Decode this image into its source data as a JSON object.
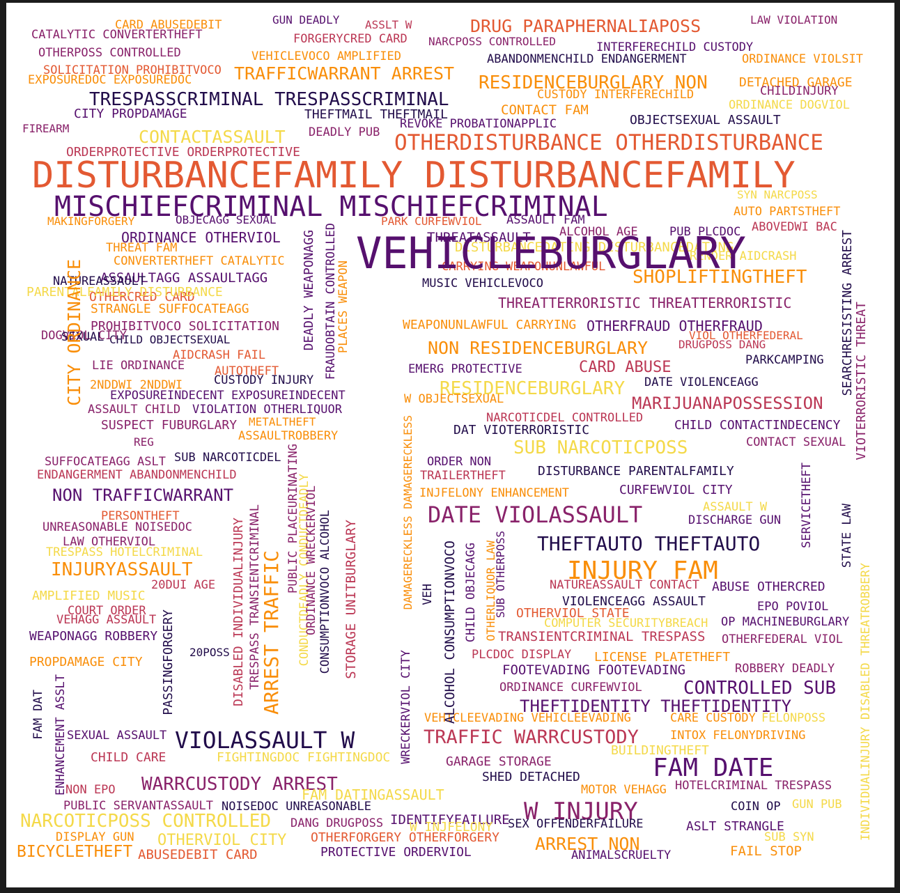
{
  "colors": {
    "c1": "#210c4a",
    "c2": "#56106e",
    "c3": "#89226a",
    "c4": "#bb3754",
    "c5": "#e35932",
    "c6": "#f98e09",
    "c7": "#f4d949"
  },
  "words": [
    {
      "text": "CARD ABUSEDEBIT",
      "c": "c6"
    },
    {
      "text": "GUN DEADLY",
      "c": "c2"
    },
    {
      "text": "ASSLT W",
      "c": "c4"
    },
    {
      "text": "DRUG PARAPHERNALIAPOSS",
      "c": "c5"
    },
    {
      "text": "LAW VIOLATION",
      "c": "c3"
    },
    {
      "text": "CATALYTIC CONVERTERTHEFT",
      "c": "c3"
    },
    {
      "text": "FORGERYCRED CARD",
      "c": "c4"
    },
    {
      "text": "NARCPOSS CONTROLLED",
      "c": "c3"
    },
    {
      "text": "INTERFERECHILD CUSTODY",
      "c": "c2"
    },
    {
      "text": "OTHERPOSS CONTROLLED",
      "c": "c3"
    },
    {
      "text": "VEHICLEVOCO AMPLIFIED",
      "c": "c6"
    },
    {
      "text": "ABANDONMENCHILD ENDANGERMENT",
      "c": "c1"
    },
    {
      "text": "ORDINANCE VIOLSIT",
      "c": "c6"
    },
    {
      "text": "SOLICITATION PROHIBITVOCO",
      "c": "c5"
    },
    {
      "text": "EXPOSUREDOC EXPOSUREDOC",
      "c": "c6"
    },
    {
      "text": "TRAFFICWARRANT ARREST",
      "c": "c6"
    },
    {
      "text": "RESIDENCEBURGLARY NON",
      "c": "c6"
    },
    {
      "text": "DETACHED GARAGE",
      "c": "c6"
    },
    {
      "text": "CHILDINJURY",
      "c": "c3"
    },
    {
      "text": "CUSTODY INTERFERECHILD",
      "c": "c6"
    },
    {
      "text": "TRESPASSCRIMINAL TRESPASSCRIMINAL",
      "c": "c1"
    },
    {
      "text": "CITY PROPDAMAGE",
      "c": "c2"
    },
    {
      "text": "THEFTMAIL THEFTMAIL",
      "c": "c1"
    },
    {
      "text": "CONTACT FAM",
      "c": "c6"
    },
    {
      "text": "ORDINANCE DOGVIOL",
      "c": "c7"
    },
    {
      "text": "FIREARM",
      "c": "c3"
    },
    {
      "text": "REVOKE PROBATIONAPPLIC",
      "c": "c2"
    },
    {
      "text": "CONTACTASSAULT",
      "c": "c7"
    },
    {
      "text": "DEADLY PUB",
      "c": "c3"
    },
    {
      "text": "OBJECTSEXUAL ASSAULT",
      "c": "c1"
    },
    {
      "text": "ORDERPROTECTIVE ORDERPROTECTIVE",
      "c": "c4"
    },
    {
      "text": "OTHERDISTURBANCE OTHERDISTURBANCE",
      "c": "c5"
    },
    {
      "text": "DISTURBANCEFAMILY DISTURBANCEFAMILY",
      "c": "c5"
    },
    {
      "text": "MISCHIEFCRIMINAL MISCHIEFCRIMINAL",
      "c": "c2"
    },
    {
      "text": "SYN NARCPOSS",
      "c": "c7"
    },
    {
      "text": "AUTO PARTSTHEFT",
      "c": "c6"
    },
    {
      "text": "MAKINGFORGERY",
      "c": "c6"
    },
    {
      "text": "OBJECAGG SEXUAL",
      "c": "c2"
    },
    {
      "text": "PARK CURFEWVIOL",
      "c": "c5"
    },
    {
      "text": "ASSAULT FAM",
      "c": "c2"
    },
    {
      "text": "ABOVEDWI BAC",
      "c": "c4"
    },
    {
      "text": "ORDINANCE OTHERVIOL",
      "c": "c2"
    },
    {
      "text": "THREATASSAULT",
      "c": "c2"
    },
    {
      "text": "ALCOHOL AGE",
      "c": "c3"
    },
    {
      "text": "PUB PLCDOC",
      "c": "c2"
    },
    {
      "text": "THREAT FAM",
      "c": "c6"
    },
    {
      "text": "DISTURBANCEDATING DISTURBANCEDATING",
      "c": "c7"
    },
    {
      "text": "RENDER AIDCRASH",
      "c": "c7"
    },
    {
      "text": "CONVERTERTHEFT CATALYTIC",
      "c": "c6"
    },
    {
      "text": "CARRYING WEAPONUNLAWFUL",
      "c": "c5"
    },
    {
      "text": "ASSAULTAGG ASSAULTAGG",
      "c": "c2"
    },
    {
      "text": "SHOPLIFTINGTHEFT",
      "c": "c6"
    },
    {
      "text": "MUSIC VEHICLEVOCO",
      "c": "c1"
    },
    {
      "text": "OTHERCRED CARD",
      "c": "c5"
    },
    {
      "text": "THREATTERRORISTIC THREATTERRORISTIC",
      "c": "c3"
    },
    {
      "text": "STRANGLE SUFFOCATEAGG",
      "c": "c6"
    },
    {
      "text": "PROHIBITVOCO SOLICITATION",
      "c": "c3"
    },
    {
      "text": "WEAPONUNLAWFUL CARRYING",
      "c": "c6"
    },
    {
      "text": "OTHERFRAUD OTHERFRAUD",
      "c": "c2"
    },
    {
      "text": "CHILD OBJECTSEXUAL",
      "c": "c1"
    },
    {
      "text": "VIOL OTHERFEDERAL",
      "c": "c5"
    },
    {
      "text": "DRUGPOSS DANG",
      "c": "c4"
    },
    {
      "text": "AIDCRASH FAIL",
      "c": "c5"
    },
    {
      "text": "NON RESIDENCEBURGLARY",
      "c": "c6"
    },
    {
      "text": "PARKCAMPING",
      "c": "c1"
    },
    {
      "text": "LIE ORDINANCE",
      "c": "c3"
    },
    {
      "text": "AUTOTHEFT",
      "c": "c5"
    },
    {
      "text": "EMERG PROTECTIVE",
      "c": "c2"
    },
    {
      "text": "CARD ABUSE",
      "c": "c4"
    },
    {
      "text": "2NDDWI 2NDDWI",
      "c": "c6"
    },
    {
      "text": "CUSTODY INJURY",
      "c": "c1"
    },
    {
      "text": "RESIDENCEBURGLARY",
      "c": "c7"
    },
    {
      "text": "DATE VIOLENCEAGG",
      "c": "c1"
    },
    {
      "text": "EXPOSUREINDECENT EXPOSUREINDECENT",
      "c": "c2"
    },
    {
      "text": "W OBJECTSEXUAL",
      "c": "c6"
    },
    {
      "text": "MARIJUANAPOSSESSION",
      "c": "c4"
    },
    {
      "text": "ASSAULT CHILD",
      "c": "c3"
    },
    {
      "text": "VIOLATION OTHERLIQUOR",
      "c": "c2"
    },
    {
      "text": "NARCOTICDEL CONTROLLED",
      "c": "c4"
    },
    {
      "text": "METALTHEFT",
      "c": "c6"
    },
    {
      "text": "SUSPECT FUBURGLARY",
      "c": "c3"
    },
    {
      "text": "DAT VIOTERRORISTIC",
      "c": "c1"
    },
    {
      "text": "CHILD CONTACTINDECENCY",
      "c": "c2"
    },
    {
      "text": "ASSAULTROBBERY",
      "c": "c6"
    },
    {
      "text": "REG",
      "c": "c3"
    },
    {
      "text": "SUB NARCOTICPOSS",
      "c": "c7"
    },
    {
      "text": "CONTACT SEXUAL",
      "c": "c3"
    },
    {
      "text": "SUFFOCATEAGG ASLT",
      "c": "c3"
    },
    {
      "text": "SUB NARCOTICDEL",
      "c": "c1"
    },
    {
      "text": "ORDER NON",
      "c": "c2"
    },
    {
      "text": "ENDANGERMENT ABANDONMENCHILD",
      "c": "c4"
    },
    {
      "text": "TRAILERTHEFT",
      "c": "c4"
    },
    {
      "text": "DISTURBANCE PARENTALFAMILY",
      "c": "c1"
    },
    {
      "text": "NON TRAFFICWARRANT",
      "c": "c2"
    },
    {
      "text": "INJFELONY ENHANCEMENT",
      "c": "c6"
    },
    {
      "text": "CURFEWVIOL CITY",
      "c": "c2"
    },
    {
      "text": "PERSONTHEFT",
      "c": "c5"
    },
    {
      "text": "ASSAULT W",
      "c": "c7"
    },
    {
      "text": "DATE VIOLASSAULT",
      "c": "c3"
    },
    {
      "text": "UNREASONABLE NOISEDOC",
      "c": "c3"
    },
    {
      "text": "DISCHARGE GUN",
      "c": "c2"
    },
    {
      "text": "LAW OTHERVIOL",
      "c": "c3"
    },
    {
      "text": "THEFTAUTO THEFTAUTO",
      "c": "c1"
    },
    {
      "text": "TRESPASS HOTELCRIMINAL",
      "c": "c7"
    },
    {
      "text": "INJURYASSAULT",
      "c": "c6"
    },
    {
      "text": "INJURY FAM",
      "c": "c6"
    },
    {
      "text": "20DUI AGE",
      "c": "c4"
    },
    {
      "text": "NATUREASSAULT CONTACT",
      "c": "c4"
    },
    {
      "text": "ABUSE OTHERCRED",
      "c": "c2"
    },
    {
      "text": "AMPLIFIED MUSIC",
      "c": "c7"
    },
    {
      "text": "VIOLENCEAGG ASSAULT",
      "c": "c1"
    },
    {
      "text": "EPO POVIOL",
      "c": "c2"
    },
    {
      "text": "COURT ORDER",
      "c": "c4"
    },
    {
      "text": "OTHERVIOL STATE",
      "c": "c5"
    },
    {
      "text": "VEHAGG ASSAULT",
      "c": "c4"
    },
    {
      "text": "COMPUTER SECURITYBREACH",
      "c": "c7"
    },
    {
      "text": "OP MACHINEBURGLARY",
      "c": "c2"
    },
    {
      "text": "WEAPONAGG ROBBERY",
      "c": "c2"
    },
    {
      "text": "TRANSIENTCRIMINAL TRESPASS",
      "c": "c4"
    },
    {
      "text": "OTHERFEDERAL VIOL",
      "c": "c3"
    },
    {
      "text": "20POSS",
      "c": "c1"
    },
    {
      "text": "PLCDOC DISPLAY",
      "c": "c4"
    },
    {
      "text": "LICENSE PLATETHEFT",
      "c": "c6"
    },
    {
      "text": "PROPDAMAGE CITY",
      "c": "c6"
    },
    {
      "text": "FOOTEVADING FOOTEVADING",
      "c": "c2"
    },
    {
      "text": "ROBBERY DEADLY",
      "c": "c3"
    },
    {
      "text": "ORDINANCE CURFEWVIOL",
      "c": "c3"
    },
    {
      "text": "CONTROLLED SUB",
      "c": "c2"
    },
    {
      "text": "THEFTIDENTITY THEFTIDENTITY",
      "c": "c2"
    },
    {
      "text": "VEHICLEEVADING VEHICLEEVADING",
      "c": "c6"
    },
    {
      "text": "CARE CUSTODY",
      "c": "c6"
    },
    {
      "text": "FELONPOSS",
      "c": "c7"
    },
    {
      "text": "SEXUAL ASSAULT",
      "c": "c2"
    },
    {
      "text": "VIOLASSAULT W",
      "c": "c1"
    },
    {
      "text": "TRAFFIC WARRCUSTODY",
      "c": "c4"
    },
    {
      "text": "INTOX FELONYDRIVING",
      "c": "c6"
    },
    {
      "text": "BUILDINGTHEFT",
      "c": "c7"
    },
    {
      "text": "CHILD CARE",
      "c": "c4"
    },
    {
      "text": "FIGHTINGDOC FIGHTINGDOC",
      "c": "c7"
    },
    {
      "text": "GARAGE STORAGE",
      "c": "c3"
    },
    {
      "text": "FAM DATE",
      "c": "c2"
    },
    {
      "text": "SHED DETACHED",
      "c": "c1"
    },
    {
      "text": "NON EPO",
      "c": "c4"
    },
    {
      "text": "WARRCUSTODY ARREST",
      "c": "c3"
    },
    {
      "text": "FAM DATINGASSAULT",
      "c": "c7"
    },
    {
      "text": "MOTOR VEHAGG",
      "c": "c6"
    },
    {
      "text": "HOTELCRIMINAL TRESPASS",
      "c": "c3"
    },
    {
      "text": "PUBLIC SERVANTASSAULT",
      "c": "c3"
    },
    {
      "text": "NOISEDOC UNREASONABLE",
      "c": "c1"
    },
    {
      "text": "W INJURY",
      "c": "c3"
    },
    {
      "text": "COIN OP",
      "c": "c1"
    },
    {
      "text": "GUN PUB",
      "c": "c7"
    },
    {
      "text": "NARCOTICPOSS CONTROLLED",
      "c": "c7"
    },
    {
      "text": "DANG DRUGPOSS",
      "c": "c3"
    },
    {
      "text": "IDENTIFYFAILURE",
      "c": "c2"
    },
    {
      "text": "W INJFELONY",
      "c": "c7"
    },
    {
      "text": "SEX OFFENDERFAILURE",
      "c": "c1"
    },
    {
      "text": "ASLT STRANGLE",
      "c": "c2"
    },
    {
      "text": "DISPLAY GUN",
      "c": "c6"
    },
    {
      "text": "OTHERFORGERY OTHERFORGERY",
      "c": "c5"
    },
    {
      "text": "SUB SYN",
      "c": "c7"
    },
    {
      "text": "OTHERVIOL CITY",
      "c": "c7"
    },
    {
      "text": "ARREST NON",
      "c": "c6"
    },
    {
      "text": "BICYCLETHEFT",
      "c": "c6"
    },
    {
      "text": "ABUSEDEBIT CARD",
      "c": "c5"
    },
    {
      "text": "PROTECTIVE ORDERVIOL",
      "c": "c2"
    },
    {
      "text": "ANIMALSCRUELTY",
      "c": "c2"
    },
    {
      "text": "FAIL STOP",
      "c": "c6"
    },
    {
      "text": "VEHICLEBURGLARY",
      "c": "c2"
    },
    {
      "text": "PARENTALFAMILY DISTURBANCE",
      "c": "c7"
    },
    {
      "text": "DOGVIOL CITY",
      "c": "c3"
    },
    {
      "text": "NATUREASSAULT",
      "c": "c1"
    },
    {
      "text": "SEXUAL",
      "c": "c1"
    },
    {
      "text": "CITY ORDINANCE",
      "c": "c6"
    },
    {
      "text": "DEADLY WEAPONAGG",
      "c": "c2"
    },
    {
      "text": "FRAUDOBTAIN CONTROLLED",
      "c": "c2"
    },
    {
      "text": "PLACES WEAPON",
      "c": "c6"
    },
    {
      "text": "SEARCHRESISTING ARREST",
      "c": "c1"
    },
    {
      "text": "VIOTERRORISTIC THREAT",
      "c": "c3"
    },
    {
      "text": "SERVICETHEFT",
      "c": "c2"
    },
    {
      "text": "STATE LAW",
      "c": "c1"
    },
    {
      "text": "INDIVIDUALINJURY DISABLED THREATROBBERY",
      "c": "c7"
    },
    {
      "text": "DAMAGERECKLESS DAMAGERECKLESS",
      "c": "c6"
    },
    {
      "text": "PUBLIC PLACEURINATING",
      "c": "c3"
    },
    {
      "text": "CONDUCTDEADLY CONDUCTDEADLY",
      "c": "c7"
    },
    {
      "text": "ORDINANCE WRECKERVIOL",
      "c": "c3"
    },
    {
      "text": "CONSUMPTIONVOCO ALCOHOL",
      "c": "c1"
    },
    {
      "text": "STORAGE UNITBURGLARY",
      "c": "c4"
    },
    {
      "text": "DISABLED INDIVIDUALINJURY",
      "c": "c4"
    },
    {
      "text": "TRESPASS TRANSIENTCRIMINAL",
      "c": "c3"
    },
    {
      "text": "ARREST TRAFFIC",
      "c": "c6"
    },
    {
      "text": "PASSINGFORGERY",
      "c": "c1"
    },
    {
      "text": "ENHANCEMENT ASSLT",
      "c": "c2"
    },
    {
      "text": "FAM DAT",
      "c": "c1"
    },
    {
      "text": "WRECKERVIOL CITY",
      "c": "c2"
    },
    {
      "text": "VEH",
      "c": "c1"
    },
    {
      "text": "ALCOHOL CONSUMPTIONVOCO",
      "c": "c1"
    },
    {
      "text": "CHILD OBJECAGG",
      "c": "c2"
    },
    {
      "text": "OTHERLIQUOR LAW",
      "c": "c6"
    },
    {
      "text": "SUB OTHERPOSS",
      "c": "c2"
    }
  ]
}
